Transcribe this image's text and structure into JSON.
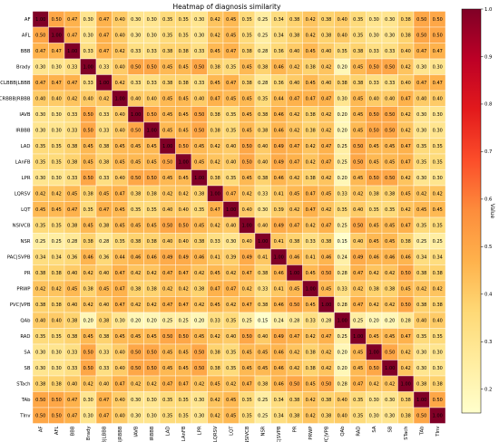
{
  "chart_data": {
    "type": "heatmap",
    "title": "Heatmap of diagnosis similarity",
    "labels": [
      "AF",
      "AFL",
      "BBB",
      "Brady",
      "CLBBB|LBBB",
      "CRBBB|RBBB",
      "IAVB",
      "IRBBB",
      "LAD",
      "LAnFB",
      "LPR",
      "LQRSV",
      "LQT",
      "NSIVCB",
      "NSR",
      "PAC|SVPB",
      "PR",
      "PRWP",
      "PVC|VPB",
      "QAb",
      "RAD",
      "SA",
      "SB",
      "STach",
      "TAb",
      "TInv"
    ],
    "values": [
      [
        1.0,
        0.5,
        0.47,
        0.3,
        0.47,
        0.4,
        0.3,
        0.3,
        0.35,
        0.35,
        0.3,
        0.42,
        0.45,
        0.35,
        0.25,
        0.34,
        0.38,
        0.42,
        0.38,
        0.4,
        0.35,
        0.3,
        0.3,
        0.38,
        0.5,
        0.5
      ],
      [
        0.5,
        1.0,
        0.47,
        0.3,
        0.47,
        0.4,
        0.3,
        0.3,
        0.35,
        0.35,
        0.3,
        0.42,
        0.45,
        0.35,
        0.25,
        0.34,
        0.38,
        0.42,
        0.38,
        0.4,
        0.35,
        0.3,
        0.3,
        0.38,
        0.5,
        0.5
      ],
      [
        0.47,
        0.47,
        1.0,
        0.33,
        0.47,
        0.42,
        0.33,
        0.33,
        0.38,
        0.38,
        0.33,
        0.45,
        0.47,
        0.38,
        0.28,
        0.36,
        0.4,
        0.45,
        0.4,
        0.35,
        0.38,
        0.33,
        0.33,
        0.4,
        0.47,
        0.47
      ],
      [
        0.3,
        0.3,
        0.33,
        1.0,
        0.33,
        0.4,
        0.5,
        0.5,
        0.45,
        0.45,
        0.5,
        0.38,
        0.35,
        0.45,
        0.38,
        0.46,
        0.42,
        0.38,
        0.42,
        0.2,
        0.45,
        0.5,
        0.5,
        0.42,
        0.3,
        0.3
      ],
      [
        0.47,
        0.47,
        0.47,
        0.33,
        1.0,
        0.42,
        0.33,
        0.33,
        0.38,
        0.38,
        0.33,
        0.45,
        0.47,
        0.38,
        0.28,
        0.36,
        0.4,
        0.45,
        0.4,
        0.38,
        0.38,
        0.33,
        0.33,
        0.4,
        0.47,
        0.47
      ],
      [
        0.4,
        0.4,
        0.42,
        0.4,
        0.42,
        1.0,
        0.4,
        0.4,
        0.45,
        0.45,
        0.4,
        0.47,
        0.45,
        0.45,
        0.35,
        0.44,
        0.47,
        0.47,
        0.47,
        0.3,
        0.45,
        0.4,
        0.4,
        0.47,
        0.4,
        0.4
      ],
      [
        0.3,
        0.3,
        0.33,
        0.5,
        0.33,
        0.4,
        1.0,
        0.5,
        0.45,
        0.45,
        0.5,
        0.38,
        0.35,
        0.45,
        0.38,
        0.46,
        0.42,
        0.38,
        0.42,
        0.2,
        0.45,
        0.5,
        0.5,
        0.42,
        0.3,
        0.3
      ],
      [
        0.3,
        0.3,
        0.33,
        0.5,
        0.33,
        0.4,
        0.5,
        1.0,
        0.45,
        0.45,
        0.5,
        0.38,
        0.35,
        0.45,
        0.38,
        0.46,
        0.42,
        0.38,
        0.42,
        0.2,
        0.45,
        0.5,
        0.5,
        0.42,
        0.3,
        0.3
      ],
      [
        0.35,
        0.35,
        0.38,
        0.45,
        0.38,
        0.45,
        0.45,
        0.45,
        1.0,
        0.5,
        0.45,
        0.42,
        0.4,
        0.5,
        0.4,
        0.49,
        0.47,
        0.42,
        0.47,
        0.25,
        0.5,
        0.45,
        0.45,
        0.47,
        0.35,
        0.35
      ],
      [
        0.35,
        0.35,
        0.38,
        0.45,
        0.38,
        0.45,
        0.45,
        0.45,
        0.5,
        1.0,
        0.45,
        0.42,
        0.4,
        0.5,
        0.4,
        0.49,
        0.47,
        0.42,
        0.47,
        0.25,
        0.5,
        0.45,
        0.45,
        0.47,
        0.35,
        0.35
      ],
      [
        0.3,
        0.3,
        0.33,
        0.5,
        0.33,
        0.4,
        0.5,
        0.5,
        0.45,
        0.45,
        1.0,
        0.38,
        0.35,
        0.45,
        0.38,
        0.46,
        0.42,
        0.38,
        0.42,
        0.2,
        0.45,
        0.5,
        0.5,
        0.42,
        0.3,
        0.3
      ],
      [
        0.42,
        0.42,
        0.45,
        0.38,
        0.45,
        0.47,
        0.38,
        0.38,
        0.42,
        0.42,
        0.38,
        1.0,
        0.47,
        0.42,
        0.33,
        0.41,
        0.45,
        0.47,
        0.45,
        0.33,
        0.42,
        0.38,
        0.38,
        0.45,
        0.42,
        0.42
      ],
      [
        0.45,
        0.45,
        0.47,
        0.35,
        0.47,
        0.45,
        0.35,
        0.35,
        0.4,
        0.4,
        0.35,
        0.47,
        1.0,
        0.4,
        0.3,
        0.39,
        0.42,
        0.47,
        0.42,
        0.35,
        0.4,
        0.35,
        0.35,
        0.42,
        0.45,
        0.45
      ],
      [
        0.35,
        0.35,
        0.38,
        0.45,
        0.38,
        0.45,
        0.45,
        0.45,
        0.5,
        0.5,
        0.45,
        0.42,
        0.4,
        1.0,
        0.4,
        0.49,
        0.47,
        0.42,
        0.47,
        0.25,
        0.5,
        0.45,
        0.45,
        0.47,
        0.35,
        0.35
      ],
      [
        0.25,
        0.25,
        0.28,
        0.38,
        0.28,
        0.35,
        0.38,
        0.38,
        0.4,
        0.4,
        0.38,
        0.33,
        0.3,
        0.4,
        1.0,
        0.41,
        0.38,
        0.33,
        0.38,
        0.15,
        0.4,
        0.45,
        0.45,
        0.38,
        0.25,
        0.25
      ],
      [
        0.34,
        0.34,
        0.36,
        0.46,
        0.36,
        0.44,
        0.46,
        0.46,
        0.49,
        0.49,
        0.46,
        0.41,
        0.39,
        0.49,
        0.41,
        1.0,
        0.46,
        0.41,
        0.46,
        0.24,
        0.49,
        0.46,
        0.46,
        0.46,
        0.34,
        0.34
      ],
      [
        0.38,
        0.38,
        0.4,
        0.42,
        0.4,
        0.47,
        0.42,
        0.42,
        0.47,
        0.47,
        0.42,
        0.45,
        0.42,
        0.47,
        0.38,
        0.46,
        1.0,
        0.45,
        0.5,
        0.28,
        0.47,
        0.42,
        0.42,
        0.5,
        0.38,
        0.38
      ],
      [
        0.42,
        0.42,
        0.45,
        0.38,
        0.45,
        0.47,
        0.38,
        0.38,
        0.42,
        0.42,
        0.38,
        0.47,
        0.47,
        0.42,
        0.33,
        0.41,
        0.45,
        1.0,
        0.45,
        0.33,
        0.42,
        0.38,
        0.38,
        0.45,
        0.42,
        0.42
      ],
      [
        0.38,
        0.38,
        0.4,
        0.42,
        0.4,
        0.47,
        0.42,
        0.42,
        0.47,
        0.47,
        0.42,
        0.45,
        0.42,
        0.47,
        0.38,
        0.46,
        0.5,
        0.45,
        1.0,
        0.28,
        0.47,
        0.42,
        0.42,
        0.5,
        0.38,
        0.38
      ],
      [
        0.4,
        0.4,
        0.38,
        0.2,
        0.38,
        0.3,
        0.2,
        0.2,
        0.25,
        0.25,
        0.2,
        0.33,
        0.35,
        0.25,
        0.15,
        0.24,
        0.28,
        0.33,
        0.28,
        1.0,
        0.25,
        0.2,
        0.2,
        0.28,
        0.4,
        0.4
      ],
      [
        0.35,
        0.35,
        0.38,
        0.45,
        0.38,
        0.45,
        0.45,
        0.45,
        0.5,
        0.5,
        0.45,
        0.42,
        0.4,
        0.5,
        0.4,
        0.49,
        0.47,
        0.42,
        0.47,
        0.25,
        1.0,
        0.45,
        0.45,
        0.47,
        0.35,
        0.35
      ],
      [
        0.3,
        0.3,
        0.33,
        0.5,
        0.33,
        0.4,
        0.5,
        0.5,
        0.45,
        0.45,
        0.5,
        0.38,
        0.35,
        0.45,
        0.45,
        0.46,
        0.42,
        0.38,
        0.42,
        0.2,
        0.45,
        1.0,
        0.5,
        0.42,
        0.3,
        0.3
      ],
      [
        0.3,
        0.3,
        0.33,
        0.5,
        0.33,
        0.4,
        0.5,
        0.5,
        0.45,
        0.45,
        0.5,
        0.38,
        0.35,
        0.45,
        0.45,
        0.46,
        0.42,
        0.38,
        0.42,
        0.2,
        0.45,
        0.5,
        1.0,
        0.42,
        0.3,
        0.3
      ],
      [
        0.38,
        0.38,
        0.4,
        0.42,
        0.4,
        0.47,
        0.42,
        0.42,
        0.47,
        0.47,
        0.42,
        0.45,
        0.42,
        0.47,
        0.38,
        0.46,
        0.5,
        0.45,
        0.5,
        0.28,
        0.47,
        0.42,
        0.42,
        1.0,
        0.38,
        0.38
      ],
      [
        0.5,
        0.5,
        0.47,
        0.3,
        0.47,
        0.4,
        0.3,
        0.3,
        0.35,
        0.35,
        0.3,
        0.42,
        0.45,
        0.35,
        0.25,
        0.34,
        0.38,
        0.42,
        0.38,
        0.4,
        0.35,
        0.3,
        0.3,
        0.38,
        1.0,
        0.5
      ],
      [
        0.5,
        0.5,
        0.47,
        0.3,
        0.47,
        0.4,
        0.3,
        0.3,
        0.35,
        0.35,
        0.3,
        0.42,
        0.45,
        0.35,
        0.25,
        0.34,
        0.38,
        0.42,
        0.38,
        0.4,
        0.35,
        0.3,
        0.3,
        0.38,
        0.5,
        1.0
      ]
    ],
    "colorbar": {
      "label": "Value",
      "range": [
        0.15,
        1.0
      ],
      "ticks": [
        "0.2",
        "0.3",
        "0.4",
        "0.5",
        "0.6",
        "0.7",
        "0.8",
        "0.9",
        "1.0"
      ],
      "colormap": "YlOrRd",
      "colors": [
        "#ffffcc",
        "#ffeda0",
        "#fed976",
        "#feb24c",
        "#fd8d3c",
        "#fc4e2a",
        "#e31a1c",
        "#bd0026",
        "#800026"
      ]
    },
    "annotations": "two-decimal value printed in each cell",
    "grid": true
  }
}
